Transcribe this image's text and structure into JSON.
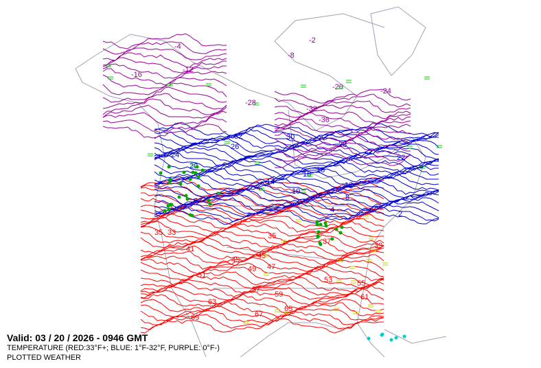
{
  "map": {
    "valid_label": "Valid: 03 / 20 / 2026  -  0946 GMT",
    "legend_line": "TEMPERATURE (RED:33°F+; BLUE: 1°F-32°F, PURPLE: 0°F-)",
    "layer_label": "PLOTTED WEATHER",
    "colors": {
      "warm": "#ff0000",
      "cold": "#0000cc",
      "frigid": "#990099",
      "coast": "#a0a0b4",
      "rain": "#00aa00",
      "snow": "#00cc00",
      "fog": "#cccc00",
      "freezing": "#00cccc"
    },
    "contour_labels": {
      "red": [
        "33",
        "35",
        "35",
        "37",
        "39",
        "41",
        "43",
        "45",
        "47",
        "49",
        "51",
        "53",
        "55",
        "57",
        "59",
        "61",
        "63",
        "65",
        "67",
        "69"
      ],
      "blue": [
        "32",
        "30",
        "28",
        "26",
        "24",
        "22",
        "20",
        "18",
        "16",
        "14",
        "12",
        "10",
        "8",
        "6",
        "4",
        "2"
      ],
      "purple": [
        "-2",
        "-4",
        "-8",
        "-12",
        "-16",
        "-20",
        "-24",
        "-28",
        "-32",
        "-36"
      ]
    }
  }
}
